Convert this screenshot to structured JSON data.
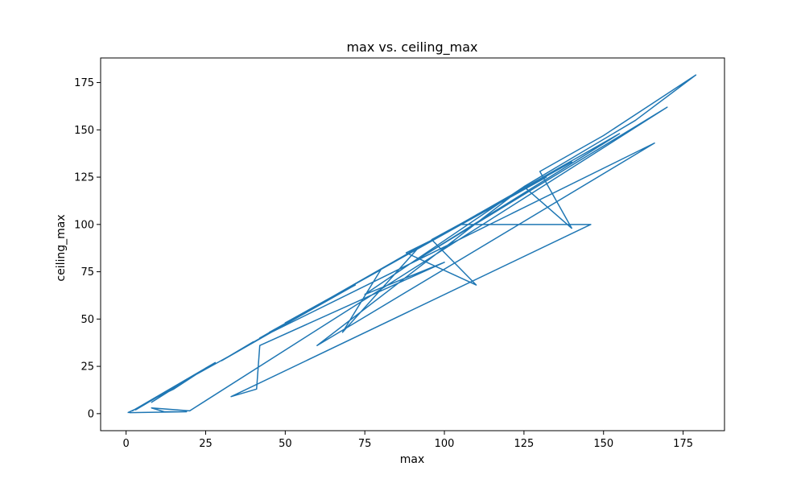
{
  "chart_data": {
    "type": "line",
    "title": "max vs. ceiling_max",
    "xlabel": "max",
    "ylabel": "ceiling_max",
    "xlim": [
      -8,
      188
    ],
    "ylim": [
      -9,
      188
    ],
    "xticks": [
      0,
      25,
      50,
      75,
      100,
      125,
      150,
      175
    ],
    "yticks": [
      0,
      25,
      50,
      75,
      100,
      125,
      150,
      175
    ],
    "grid": false,
    "legend": "none",
    "color": "#1f77b4",
    "series": [
      {
        "x": [
          0.5,
          5,
          12,
          3,
          20,
          8,
          25,
          15,
          10,
          28,
          2,
          18,
          32,
          40,
          30,
          55,
          45,
          60,
          35,
          72,
          50,
          80,
          68,
          92,
          65,
          100,
          88,
          110,
          96,
          120,
          84,
          132,
          110,
          140,
          105,
          146,
          33,
          41,
          42,
          100,
          75,
          125,
          160,
          179,
          150,
          130,
          140,
          125,
          60,
          166,
          42,
          155,
          92,
          170,
          20,
          8,
          12,
          19,
          1
        ],
        "y": [
          0.5,
          4,
          11,
          2,
          19,
          6,
          24,
          13,
          9,
          27,
          1.5,
          17,
          30,
          38,
          28,
          52,
          43,
          57,
          33,
          68,
          48,
          76,
          43,
          88,
          62,
          95,
          85,
          68,
          92,
          114,
          80,
          125,
          105,
          133,
          100,
          100,
          9,
          13,
          36,
          80,
          63,
          120,
          155,
          179,
          147,
          128,
          98,
          120,
          36,
          143,
          40,
          148,
          82,
          162,
          1.5,
          3,
          1,
          1,
          0.5
        ]
      }
    ]
  }
}
